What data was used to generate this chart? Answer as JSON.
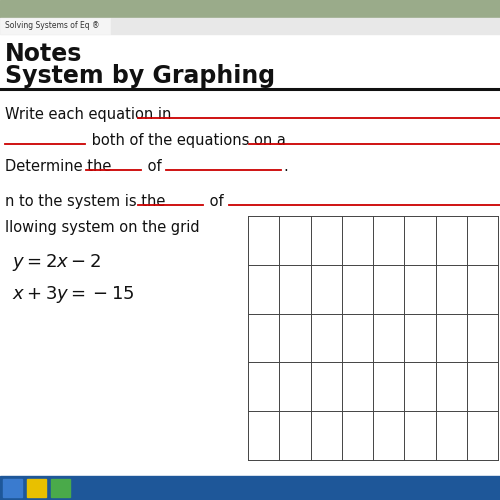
{
  "tab_text": "Solving Systems of Eq ®",
  "title_line1": "Notes",
  "title_line2": "System by Graphing",
  "line1_prefix": "Write each equation in ",
  "line2_prefix": " both of the equations on a ",
  "line3_text": "Determine the ",
  "line3_of": " of ",
  "line3_end": ".",
  "line4_text": "n to the system is the ",
  "line4_of": " of ",
  "line5_text": "llowing system on the grid",
  "eq1": "$y = 2x - 2$",
  "eq2": "$x + 3y = -15$",
  "bg_color": "#ffffff",
  "tab_bg": "#e8e8e8",
  "tab_active": "#f5f5f5",
  "photo_color": "#9aab8a",
  "red_color": "#cc0000",
  "text_color": "#111111",
  "grid_color": "#444444",
  "taskbar_color": "#1e5799",
  "icon1": "#3a7bcf",
  "icon2": "#e8c000",
  "icon3": "#4aaa4a",
  "sep_color": "#111111"
}
